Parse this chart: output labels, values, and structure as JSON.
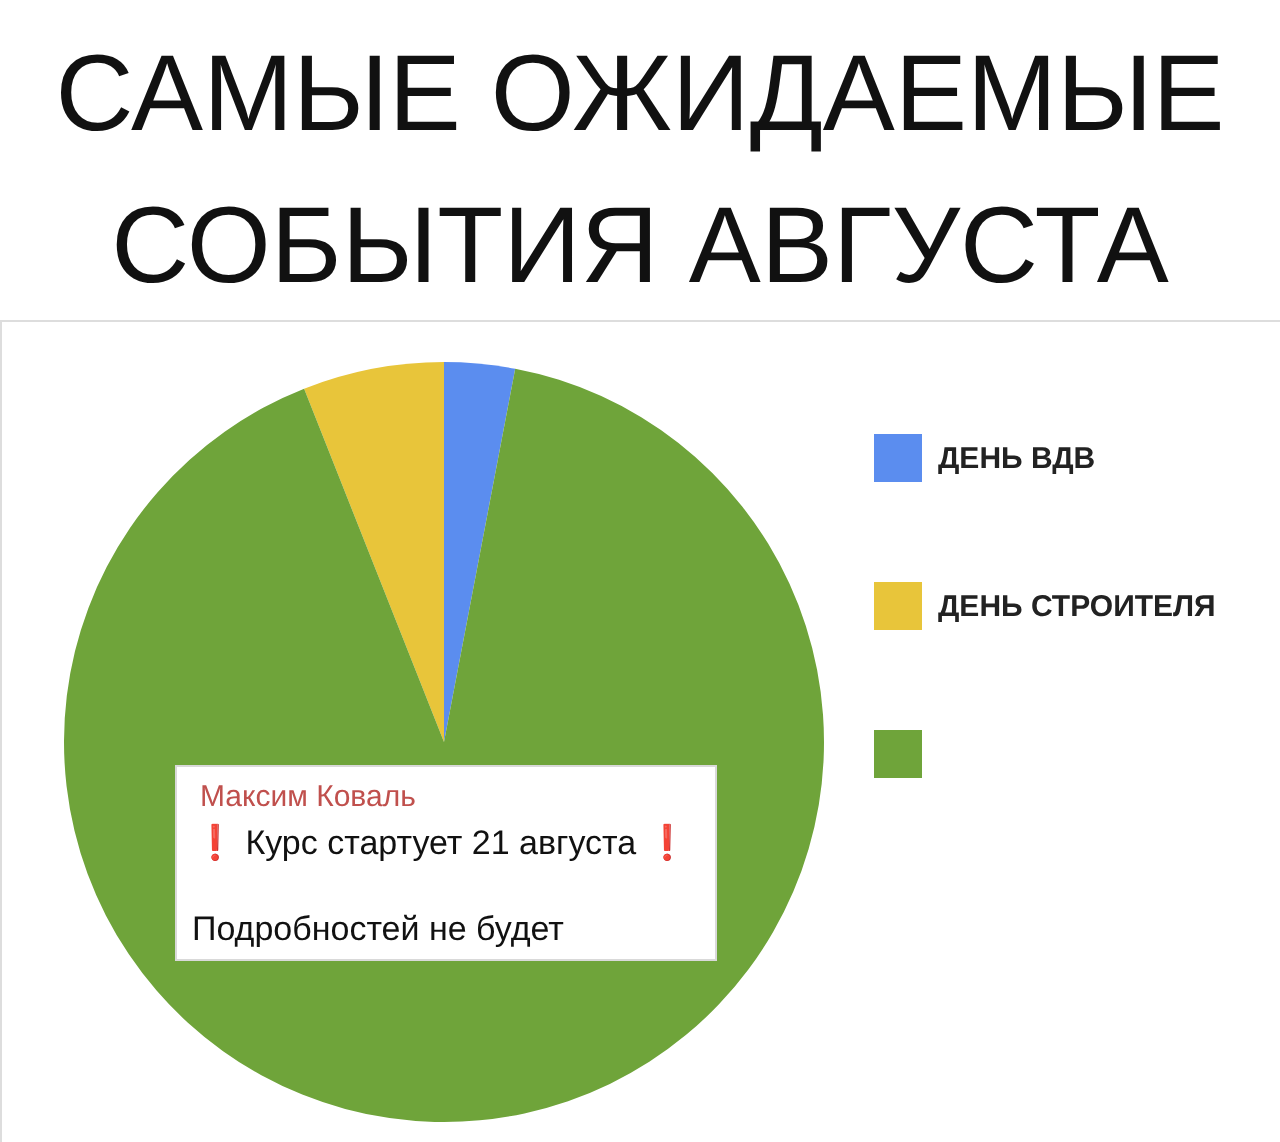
{
  "chart_data": {
    "type": "pie",
    "title": "САМЫЕ ОЖИДАЕМЫЕ\nСОБЫТИЯ АВГУСТА",
    "categories": [
      "ДЕНЬ ВДВ",
      "ДЕНЬ СТРОИТЕЛЯ",
      null
    ],
    "values": [
      3,
      6,
      91
    ],
    "colors": [
      "#5b8def",
      "#e8c53a",
      "#6fa43a"
    ],
    "legend": "right",
    "annotations": [
      "Максим Коваль",
      "❗ Курс стартует 21 августа ❗",
      "Подробностей не будет"
    ]
  }
}
